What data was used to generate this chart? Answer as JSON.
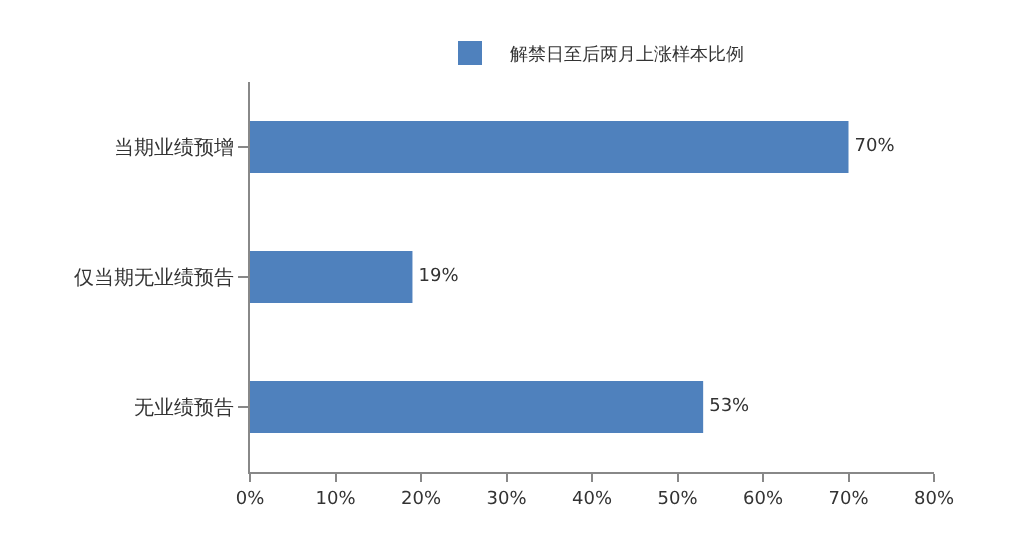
{
  "chart_data": {
    "type": "bar",
    "orientation": "horizontal",
    "categories": [
      "当期业绩预增",
      "仅当期无业绩预告",
      "无业绩预告"
    ],
    "series": [
      {
        "name": "解禁日至后两月上涨样本比例",
        "color": "#4f81bd",
        "values": [
          70,
          19,
          53
        ],
        "value_labels": [
          "70%",
          "19%",
          "53%"
        ]
      }
    ],
    "xlim": [
      0,
      80
    ],
    "xticks": [
      {
        "value": 0,
        "label": "0%"
      },
      {
        "value": 10,
        "label": "10%"
      },
      {
        "value": 20,
        "label": "20%"
      },
      {
        "value": 30,
        "label": "30%"
      },
      {
        "value": 40,
        "label": "40%"
      },
      {
        "value": 50,
        "label": "50%"
      },
      {
        "value": 60,
        "label": "60%"
      },
      {
        "value": 70,
        "label": "70%"
      },
      {
        "value": 80,
        "label": "80%"
      }
    ],
    "legend": "top"
  }
}
